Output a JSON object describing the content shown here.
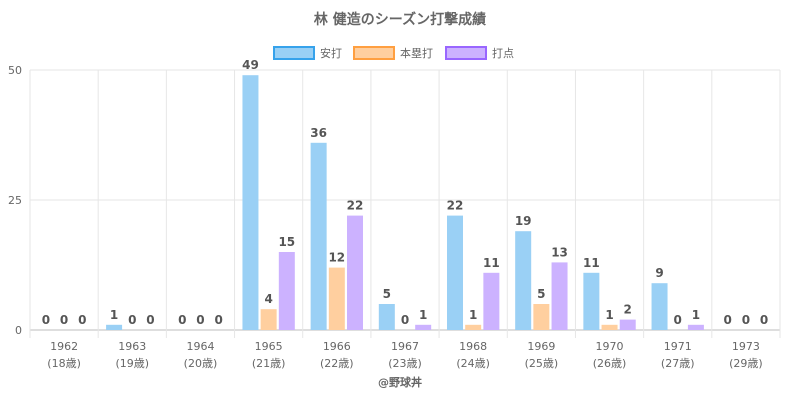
{
  "chart_data": {
    "type": "bar",
    "title": "林 健造のシーズン打撃成績",
    "categories": [
      "1962",
      "1963",
      "1964",
      "1965",
      "1966",
      "1967",
      "1968",
      "1969",
      "1970",
      "1971",
      "1973"
    ],
    "sublabels": [
      "(18歳)",
      "(19歳)",
      "(20歳)",
      "(21歳)",
      "(22歳)",
      "(23歳)",
      "(24歳)",
      "(25歳)",
      "(26歳)",
      "(27歳)",
      "(29歳)"
    ],
    "series": [
      {
        "name": "安打",
        "values": [
          0,
          1,
          0,
          49,
          36,
          5,
          22,
          19,
          11,
          9,
          0
        ],
        "color": "#9ad0f5",
        "border": "#36a2eb"
      },
      {
        "name": "本塁打",
        "values": [
          0,
          0,
          0,
          4,
          12,
          0,
          1,
          5,
          1,
          0,
          0
        ],
        "color": "#ffcf9f",
        "border": "#ff9f40"
      },
      {
        "name": "打点",
        "values": [
          0,
          0,
          0,
          15,
          22,
          1,
          11,
          13,
          2,
          1,
          0
        ],
        "color": "#ccb2ff",
        "border": "#9966ff"
      }
    ],
    "ylim": [
      0,
      50
    ],
    "yticks": [
      0,
      25,
      50
    ],
    "grid": true,
    "legend": "top"
  },
  "footer": {
    "credit": "@野球丼"
  }
}
